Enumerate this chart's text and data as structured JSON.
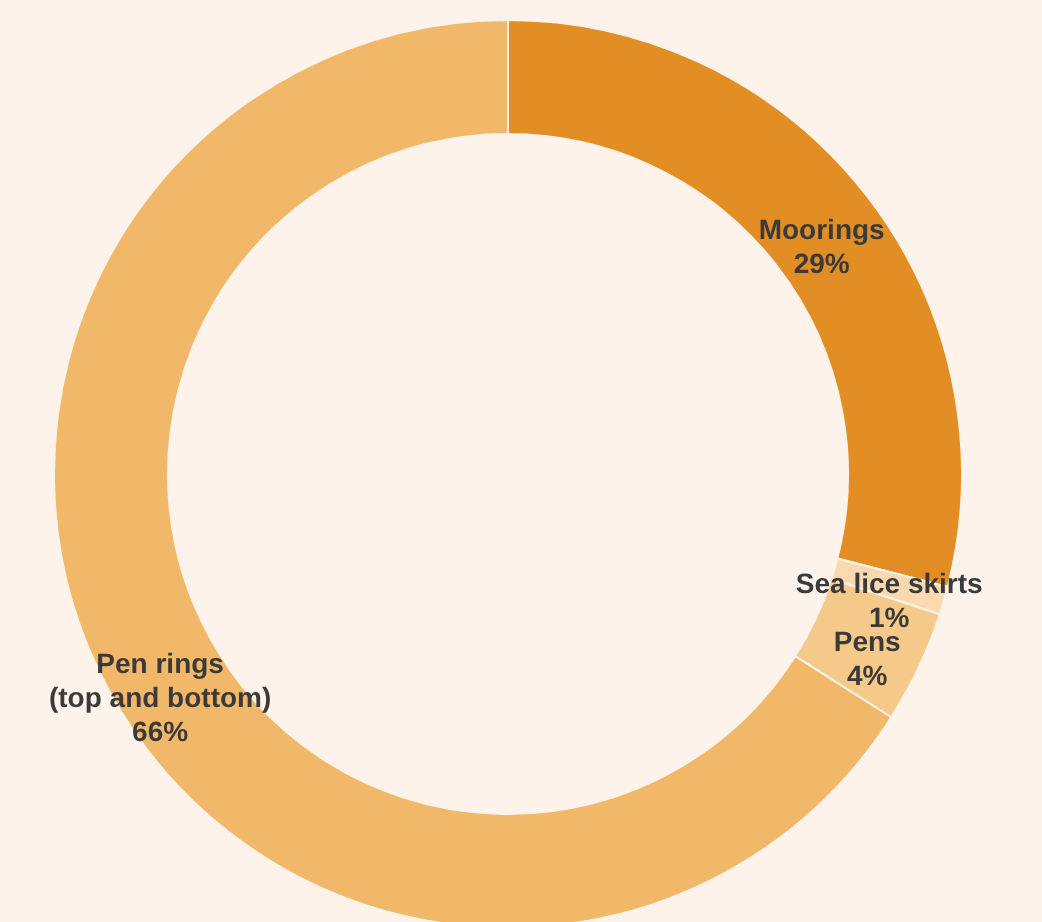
{
  "chart_data": {
    "type": "donut",
    "categories": [
      "Moorings",
      "Sea lice skirts",
      "Pens",
      "Pen rings\n(top and bottom)"
    ],
    "values": [
      29,
      1,
      4,
      66
    ],
    "value_labels": [
      "29%",
      "1%",
      "4%",
      "66%"
    ],
    "colors": [
      "#e28e25",
      "#fad9b0",
      "#f5c98a",
      "#f2b86a"
    ]
  }
}
